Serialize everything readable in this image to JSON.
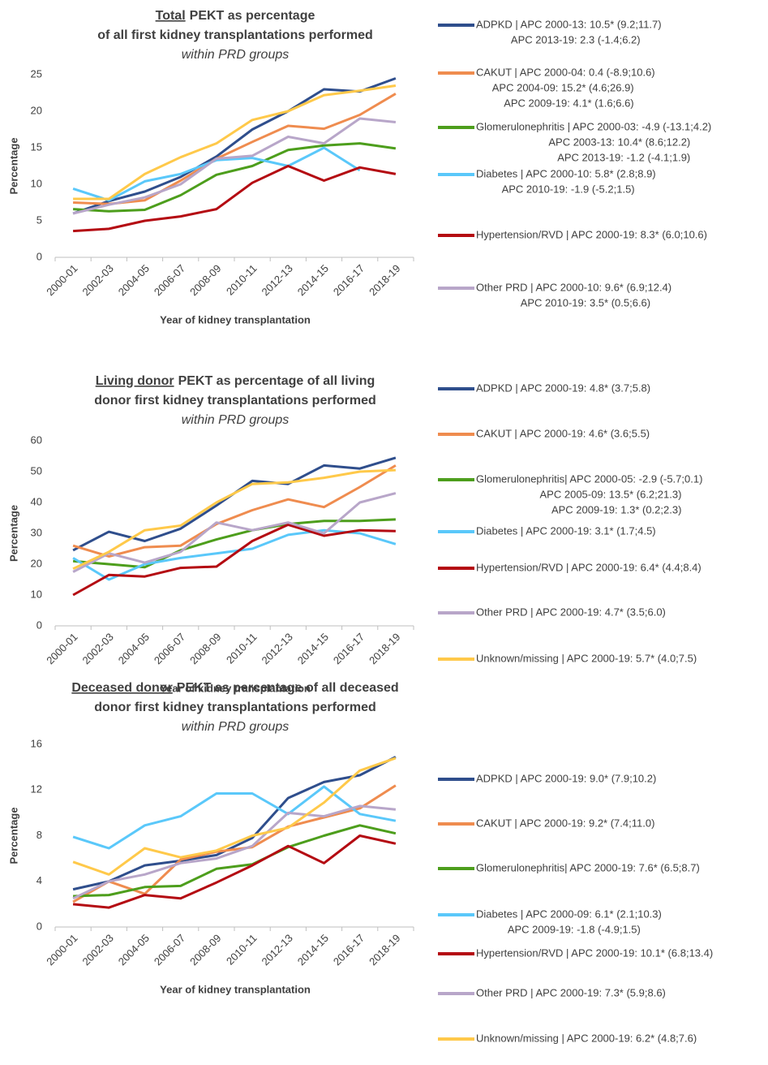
{
  "chart_data": [
    {
      "type": "line",
      "title_lead": "Total",
      "title": [
        "PEKT as percentage",
        "of all first kidney transplantations performed"
      ],
      "subtitle": "within PRD groups",
      "xlabel": "Year of kidney transplantation",
      "ylabel": "Percentage",
      "categories": [
        "2000-01",
        "2002-03",
        "2004-05",
        "2006-07",
        "2008-09",
        "2010-11",
        "2012-13",
        "2014-15",
        "2016-17",
        "2018-19"
      ],
      "ylim": [
        0,
        25
      ],
      "yticks": [
        0,
        5,
        10,
        15,
        20,
        25
      ],
      "grid": false,
      "series": [
        {
          "name": "ADPKD | APC 2000-13: 10.5* (9.2;11.7)",
          "more": [
            "APC 2013-19: 2.3 (-1.4;6.2)"
          ],
          "color": "#2f4e8c",
          "values": [
            6.0,
            7.7,
            9.0,
            11.0,
            13.8,
            17.5,
            20.0,
            23.0,
            22.7,
            24.5
          ]
        },
        {
          "name": "CAKUT | APC 2000-04: 0.4 (-8.9;10.6)",
          "more": [
            "APC 2004-09: 15.2* (4.6;26.9)",
            "APC 2009-19: 4.1* (1.6;6.6)"
          ],
          "color": "#ef8c4f",
          "values": [
            7.5,
            7.3,
            7.8,
            10.5,
            13.5,
            15.8,
            18.0,
            17.6,
            19.5,
            22.4
          ]
        },
        {
          "name": "Glomerulonephritis | APC 2000-03: -4.9 (-13.1;4.2)",
          "more": [
            "APC 2003-13: 10.4* (8.6;12.2)",
            "APC 2013-19: -1.2 (-4.1;1.9)"
          ],
          "color": "#4d9e1c",
          "values": [
            6.6,
            6.3,
            6.5,
            8.5,
            11.3,
            12.5,
            14.7,
            15.3,
            15.6,
            14.9
          ]
        },
        {
          "name": "Diabetes | APC 2000-10: 5.8* (2.8;8.9)",
          "more": [
            "APC 2010-19: -1.9 (-5.2;1.5)"
          ],
          "color": "#5ac8fa",
          "values": [
            9.4,
            7.8,
            10.4,
            11.4,
            13.3,
            13.6,
            12.5,
            15.0,
            11.9,
            null
          ]
        },
        {
          "name": "Hypertension/RVD | APC 2000-19: 8.3* (6.0;10.6)",
          "more": [],
          "color": "#b40b12",
          "values": [
            3.6,
            3.9,
            5.0,
            5.6,
            6.6,
            10.2,
            12.5,
            10.5,
            12.3,
            11.4
          ]
        },
        {
          "name": "Other PRD | APC 2000-10: 9.6* (6.9;12.4)",
          "more": [
            "APC 2010-19: 3.5* (0.5;6.6)"
          ],
          "color": "#b8a6c9",
          "values": [
            6.0,
            7.2,
            8.2,
            10.0,
            13.5,
            13.9,
            16.5,
            15.6,
            19.0,
            18.5
          ]
        },
        {
          "name": null,
          "more": [],
          "color": "#ffc94a",
          "values": [
            8.0,
            8.0,
            11.4,
            13.7,
            15.6,
            18.8,
            20.0,
            22.2,
            22.8,
            23.5
          ]
        }
      ]
    },
    {
      "type": "line",
      "title_lead": "Living donor",
      "title": [
        "PEKT as percentage of all living",
        "donor first kidney transplantations performed"
      ],
      "subtitle": "within PRD groups",
      "xlabel": "Year of kidney transplantation",
      "ylabel": "Percentage",
      "categories": [
        "2000-01",
        "2002-03",
        "2004-05",
        "2006-07",
        "2008-09",
        "2010-11",
        "2012-13",
        "2014-15",
        "2016-17",
        "2018-19"
      ],
      "ylim": [
        0,
        60
      ],
      "yticks": [
        0,
        10,
        20,
        30,
        40,
        50,
        60
      ],
      "grid": false,
      "series": [
        {
          "name": "ADPKD | APC 2000-19: 4.8* (3.7;5.8)",
          "more": [],
          "color": "#2f4e8c",
          "values": [
            24.5,
            30.5,
            27.5,
            31.5,
            39,
            47,
            46,
            52,
            51,
            54.5
          ]
        },
        {
          "name": "CAKUT | APC 2000-19: 4.6* (3.6;5.5)",
          "more": [],
          "color": "#ef8c4f",
          "values": [
            26,
            22.5,
            25.5,
            26,
            33,
            37.5,
            41,
            38.5,
            45,
            52
          ]
        },
        {
          "name": "Glomerulonephritis| APC 2000-05: -2.9 (-5.7;0.1)",
          "more": [
            "APC 2005-09: 13.5* (6.2;21.3)",
            "APC 2009-19: 1.3* (0.2;2.3)"
          ],
          "color": "#4d9e1c",
          "values": [
            21,
            20,
            19,
            24.5,
            28,
            31,
            33,
            34,
            34,
            34.5
          ]
        },
        {
          "name": "Diabetes | APC 2000-19: 3.1* (1.7;4.5)",
          "more": [],
          "color": "#5ac8fa",
          "values": [
            22,
            15,
            20,
            22,
            23.5,
            25,
            29.5,
            31,
            30,
            26.5
          ]
        },
        {
          "name": "Hypertension/RVD | APC 2000-19: 6.4* (4.4;8.4)",
          "more": [],
          "color": "#b40b12",
          "values": [
            10,
            16.5,
            16,
            18.8,
            19.2,
            27.5,
            32.8,
            29.2,
            31,
            30.7
          ]
        },
        {
          "name": "Other PRD | APC 2000-19: 4.7* (3.5;6.0)",
          "more": [],
          "color": "#b8a6c9",
          "values": [
            17.5,
            23.5,
            20.5,
            24,
            33.5,
            31,
            33.5,
            30,
            40,
            43
          ]
        },
        {
          "name": "Unknown/missing | APC 2000-19: 5.7* (4.0;7.5)",
          "more": [],
          "color": "#ffc94a",
          "values": [
            18.5,
            24,
            31,
            32.5,
            40,
            46,
            46.5,
            48,
            50,
            50.5
          ]
        }
      ]
    },
    {
      "type": "line",
      "title_lead": "Deceased donor",
      "title": [
        "PEKT as percentage of all deceased",
        "donor first kidney transplantations performed"
      ],
      "subtitle": "within PRD groups",
      "xlabel": "Year of kidney transplantation",
      "ylabel": "Percentage",
      "categories": [
        "2000-01",
        "2002-03",
        "2004-05",
        "2006-07",
        "2008-09",
        "2010-11",
        "2012-13",
        "2014-15",
        "2016-17",
        "2018-19"
      ],
      "ylim": [
        0,
        16
      ],
      "yticks": [
        0,
        4,
        8,
        12,
        16
      ],
      "grid": false,
      "series": [
        {
          "name": "ADPKD | APC 2000-19: 9.0* (7.9;10.2)",
          "more": [],
          "color": "#2f4e8c",
          "values": [
            3.3,
            4.0,
            5.4,
            5.8,
            6.3,
            7.8,
            11.3,
            12.7,
            13.3,
            14.9
          ]
        },
        {
          "name": "CAKUT | APC 2000-19: 9.2* (7.4;11.0)",
          "more": [],
          "color": "#ef8c4f",
          "values": [
            2.2,
            4.0,
            2.9,
            5.9,
            6.6,
            7.0,
            8.8,
            9.6,
            10.4,
            12.4
          ]
        },
        {
          "name": "Glomerulonephritis| APC 2000-19: 7.6* (6.5;8.7)",
          "more": [],
          "color": "#4d9e1c",
          "values": [
            2.7,
            2.8,
            3.5,
            3.6,
            5.1,
            5.5,
            7.0,
            8.0,
            8.9,
            8.2
          ]
        },
        {
          "name": "Diabetes | APC 2000-09: 6.1* (2.1;10.3)",
          "more": [
            "APC 2009-19: -1.8 (-4.9;1.5)"
          ],
          "color": "#5ac8fa",
          "values": [
            7.9,
            6.9,
            8.9,
            9.7,
            11.7,
            11.7,
            9.9,
            12.3,
            9.9,
            9.3
          ]
        },
        {
          "name": "Hypertension/RVD | APC 2000-19: 10.1* (6.8;13.4)",
          "more": [],
          "color": "#b40b12",
          "values": [
            2.0,
            1.7,
            2.8,
            2.5,
            3.9,
            5.4,
            7.1,
            5.6,
            8.0,
            7.3
          ]
        },
        {
          "name": "Other PRD | APC 2000-19: 7.3* (5.9;8.6)",
          "more": [],
          "color": "#b8a6c9",
          "values": [
            2.5,
            4.0,
            4.6,
            5.6,
            6.0,
            7.1,
            10.0,
            9.7,
            10.6,
            10.3
          ]
        },
        {
          "name": "Unknown/missing | APC 2000-19: 6.2* (4.8;7.6)",
          "more": [],
          "color": "#ffc94a",
          "values": [
            5.7,
            4.6,
            6.9,
            6.1,
            6.7,
            8.0,
            8.7,
            10.9,
            13.7,
            14.8
          ]
        }
      ]
    }
  ]
}
